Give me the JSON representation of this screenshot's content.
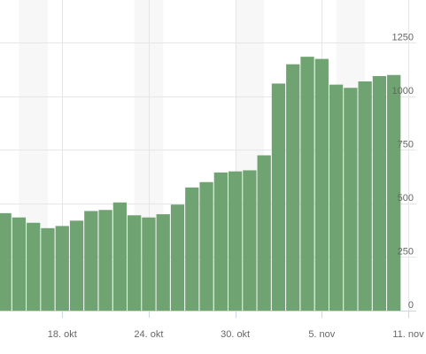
{
  "chart_data": {
    "type": "bar",
    "x_start": "2018-10-14",
    "interval_days": 1,
    "values": [
      455,
      435,
      410,
      385,
      395,
      420,
      465,
      470,
      505,
      445,
      435,
      450,
      495,
      575,
      600,
      645,
      650,
      655,
      725,
      1060,
      1150,
      1185,
      1175,
      1055,
      1040,
      1070,
      1095,
      1100
    ],
    "ylim": [
      0,
      1450
    ],
    "y_ticks": [
      {
        "value": 0,
        "label": "0"
      },
      {
        "value": 250,
        "label": "250"
      },
      {
        "value": 500,
        "label": "500"
      },
      {
        "value": 750,
        "label": "750"
      },
      {
        "value": 1000,
        "label": "1000"
      },
      {
        "value": 1250,
        "label": "1250"
      }
    ],
    "x_ticks": [
      {
        "date": "2018-10-18",
        "label": "18. okt"
      },
      {
        "date": "2018-10-24",
        "label": "24. okt"
      },
      {
        "date": "2018-10-30",
        "label": "30. okt"
      },
      {
        "date": "2018-11-05",
        "label": "5. nov"
      },
      {
        "date": "2018-11-11",
        "label": "11. nov"
      }
    ],
    "weekend_bands": [
      [
        "2018-10-15",
        "2018-10-17"
      ],
      [
        "2018-10-23",
        "2018-10-25"
      ],
      [
        "2018-10-30",
        "2018-11-01"
      ],
      [
        "2018-11-06",
        "2018-11-08"
      ]
    ],
    "bar_color": "#6fa372",
    "grid": true,
    "legend": "none",
    "title": "",
    "xlabel": "",
    "ylabel": ""
  }
}
